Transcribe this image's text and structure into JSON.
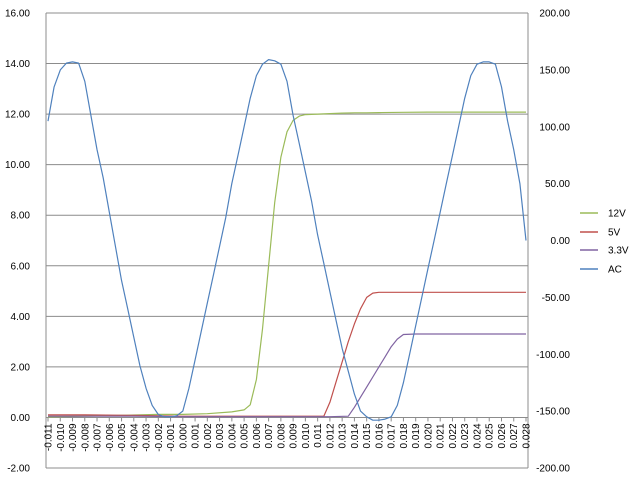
{
  "chart_data": {
    "type": "line",
    "title": "",
    "xlabel": "",
    "ylabel": "",
    "grid": true,
    "legend_position": "right",
    "x_range": [
      -0.011,
      0.028
    ],
    "x_step": 0.001,
    "y_left": {
      "range": [
        -2,
        16
      ],
      "ticks": [
        "-2.00",
        "0.00",
        "2.00",
        "4.00",
        "6.00",
        "8.00",
        "10.00",
        "12.00",
        "14.00",
        "16.00"
      ]
    },
    "y_right": {
      "range": [
        -200,
        200
      ],
      "ticks": [
        "-200.00",
        "-150.00",
        "-100.00",
        "-50.00",
        "0.00",
        "50.00",
        "100.00",
        "150.00",
        "200.00"
      ]
    },
    "x_ticks": [
      "-0.011",
      "-0.010",
      "-0.009",
      "-0.008",
      "-0.007",
      "-0.006",
      "-0.005",
      "-0.004",
      "-0.003",
      "-0.002",
      "-0.001",
      "0.000",
      "0.001",
      "0.002",
      "0.003",
      "0.004",
      "0.005",
      "0.006",
      "0.007",
      "0.008",
      "0.009",
      "0.010",
      "0.011",
      "0.012",
      "0.013",
      "0.014",
      "0.015",
      "0.016",
      "0.017",
      "0.018",
      "0.019",
      "0.020",
      "0.021",
      "0.022",
      "0.023",
      "0.024",
      "0.025",
      "0.026",
      "0.027",
      "0.028"
    ],
    "series": [
      {
        "name": "12V",
        "axis": "left",
        "color": "#9bbb59",
        "points": [
          [
            -0.011,
            0.02
          ],
          [
            -0.008,
            0.05
          ],
          [
            -0.005,
            0.08
          ],
          [
            -0.002,
            0.12
          ],
          [
            0.0,
            0.12
          ],
          [
            0.002,
            0.15
          ],
          [
            0.004,
            0.22
          ],
          [
            0.005,
            0.3
          ],
          [
            0.0055,
            0.5
          ],
          [
            0.006,
            1.5
          ],
          [
            0.0065,
            3.5
          ],
          [
            0.007,
            6.0
          ],
          [
            0.0075,
            8.5
          ],
          [
            0.008,
            10.3
          ],
          [
            0.0085,
            11.3
          ],
          [
            0.009,
            11.75
          ],
          [
            0.0095,
            11.92
          ],
          [
            0.01,
            11.98
          ],
          [
            0.011,
            12.0
          ],
          [
            0.012,
            12.02
          ],
          [
            0.013,
            12.04
          ],
          [
            0.014,
            12.05
          ],
          [
            0.015,
            12.05
          ],
          [
            0.016,
            12.06
          ],
          [
            0.018,
            12.07
          ],
          [
            0.02,
            12.08
          ],
          [
            0.022,
            12.08
          ],
          [
            0.024,
            12.08
          ],
          [
            0.026,
            12.08
          ],
          [
            0.028,
            12.08
          ]
        ]
      },
      {
        "name": "5V",
        "axis": "left",
        "color": "#c0504d",
        "points": [
          [
            -0.011,
            0.1
          ],
          [
            -0.008,
            0.1
          ],
          [
            -0.004,
            0.08
          ],
          [
            0.0,
            0.05
          ],
          [
            0.004,
            0.05
          ],
          [
            0.008,
            0.05
          ],
          [
            0.011,
            0.05
          ],
          [
            0.0115,
            0.05
          ],
          [
            0.012,
            0.6
          ],
          [
            0.0125,
            1.4
          ],
          [
            0.013,
            2.2
          ],
          [
            0.0135,
            3.0
          ],
          [
            0.014,
            3.7
          ],
          [
            0.0145,
            4.3
          ],
          [
            0.015,
            4.75
          ],
          [
            0.0155,
            4.92
          ],
          [
            0.016,
            4.95
          ],
          [
            0.018,
            4.95
          ],
          [
            0.02,
            4.95
          ],
          [
            0.022,
            4.95
          ],
          [
            0.024,
            4.95
          ],
          [
            0.026,
            4.95
          ],
          [
            0.028,
            4.95
          ]
        ]
      },
      {
        "name": "3.3V",
        "axis": "left",
        "color": "#8064a2",
        "points": [
          [
            -0.011,
            0.05
          ],
          [
            -0.008,
            0.05
          ],
          [
            -0.004,
            0.05
          ],
          [
            0.0,
            0.03
          ],
          [
            0.004,
            0.03
          ],
          [
            0.008,
            0.03
          ],
          [
            0.012,
            0.03
          ],
          [
            0.0135,
            0.05
          ],
          [
            0.014,
            0.4
          ],
          [
            0.0145,
            0.8
          ],
          [
            0.015,
            1.2
          ],
          [
            0.0155,
            1.6
          ],
          [
            0.016,
            2.0
          ],
          [
            0.0165,
            2.4
          ],
          [
            0.017,
            2.8
          ],
          [
            0.0175,
            3.1
          ],
          [
            0.018,
            3.28
          ],
          [
            0.019,
            3.3
          ],
          [
            0.02,
            3.3
          ],
          [
            0.022,
            3.3
          ],
          [
            0.024,
            3.3
          ],
          [
            0.026,
            3.3
          ],
          [
            0.028,
            3.3
          ]
        ]
      },
      {
        "name": "AC",
        "axis": "right",
        "color": "#4f81bd",
        "points": [
          [
            -0.011,
            105
          ],
          [
            -0.0105,
            135
          ],
          [
            -0.01,
            150
          ],
          [
            -0.0095,
            156
          ],
          [
            -0.009,
            157
          ],
          [
            -0.0085,
            156
          ],
          [
            -0.008,
            140
          ],
          [
            -0.0075,
            110
          ],
          [
            -0.007,
            80
          ],
          [
            -0.0065,
            55
          ],
          [
            -0.006,
            25
          ],
          [
            -0.0055,
            -5
          ],
          [
            -0.005,
            -35
          ],
          [
            -0.0045,
            -60
          ],
          [
            -0.004,
            -85
          ],
          [
            -0.0035,
            -110
          ],
          [
            -0.003,
            -130
          ],
          [
            -0.0025,
            -145
          ],
          [
            -0.002,
            -153
          ],
          [
            -0.0015,
            -155
          ],
          [
            -0.001,
            -155
          ],
          [
            -0.0005,
            -154
          ],
          [
            0.0,
            -150
          ],
          [
            0.0005,
            -130
          ],
          [
            0.001,
            -105
          ],
          [
            0.0015,
            -80
          ],
          [
            0.002,
            -55
          ],
          [
            0.0025,
            -30
          ],
          [
            0.003,
            -5
          ],
          [
            0.0035,
            20
          ],
          [
            0.004,
            50
          ],
          [
            0.0045,
            75
          ],
          [
            0.005,
            100
          ],
          [
            0.0055,
            125
          ],
          [
            0.006,
            145
          ],
          [
            0.0065,
            155
          ],
          [
            0.007,
            159
          ],
          [
            0.0075,
            158
          ],
          [
            0.008,
            155
          ],
          [
            0.0085,
            140
          ],
          [
            0.009,
            110
          ],
          [
            0.0095,
            85
          ],
          [
            0.01,
            60
          ],
          [
            0.0105,
            35
          ],
          [
            0.011,
            5
          ],
          [
            0.0115,
            -20
          ],
          [
            0.012,
            -45
          ],
          [
            0.0125,
            -70
          ],
          [
            0.013,
            -95
          ],
          [
            0.0135,
            -115
          ],
          [
            0.014,
            -135
          ],
          [
            0.0145,
            -150
          ],
          [
            0.015,
            -155
          ],
          [
            0.0155,
            -158
          ],
          [
            0.016,
            -158
          ],
          [
            0.0165,
            -157
          ],
          [
            0.017,
            -155
          ],
          [
            0.0175,
            -145
          ],
          [
            0.018,
            -125
          ],
          [
            0.0185,
            -100
          ],
          [
            0.019,
            -75
          ],
          [
            0.0195,
            -50
          ],
          [
            0.02,
            -25
          ],
          [
            0.0205,
            0
          ],
          [
            0.021,
            25
          ],
          [
            0.0215,
            50
          ],
          [
            0.022,
            75
          ],
          [
            0.0225,
            100
          ],
          [
            0.023,
            125
          ],
          [
            0.0235,
            145
          ],
          [
            0.024,
            155
          ],
          [
            0.0245,
            157
          ],
          [
            0.025,
            157
          ],
          [
            0.0255,
            155
          ],
          [
            0.026,
            135
          ],
          [
            0.0265,
            105
          ],
          [
            0.027,
            80
          ],
          [
            0.0275,
            50
          ],
          [
            0.028,
            0
          ]
        ]
      }
    ],
    "legend": [
      "12V",
      "5V",
      "3.3V",
      "AC"
    ]
  }
}
